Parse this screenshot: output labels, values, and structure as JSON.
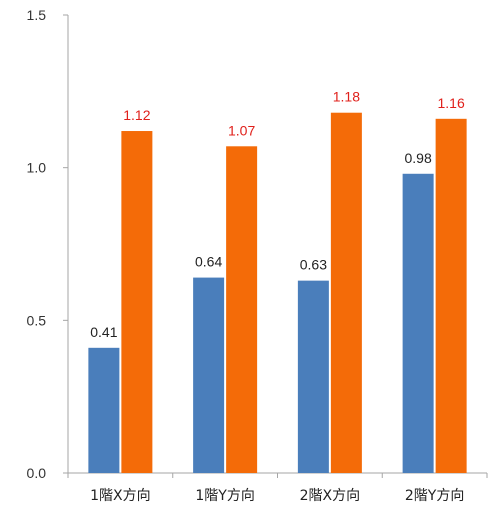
{
  "chart_data": {
    "type": "bar",
    "categories": [
      "1階X方向",
      "1階Y方向",
      "2階X方向",
      "2階Y方向"
    ],
    "series": [
      {
        "values": [
          0.41,
          0.64,
          0.63,
          0.98
        ],
        "color": "#4a7ebb",
        "label_color": "#222222"
      },
      {
        "values": [
          1.12,
          1.07,
          1.18,
          1.16
        ],
        "color": "#f46b08",
        "label_color": "#e0201b"
      }
    ],
    "ylim": [
      0,
      1.5
    ],
    "yticks": [
      "0.0",
      "0.5",
      "1.0",
      "1.5"
    ],
    "ytick_values": [
      0,
      0.5,
      1.0,
      1.5
    ],
    "axis_color": "#a6a6a6",
    "grid": false,
    "legend": "none"
  }
}
